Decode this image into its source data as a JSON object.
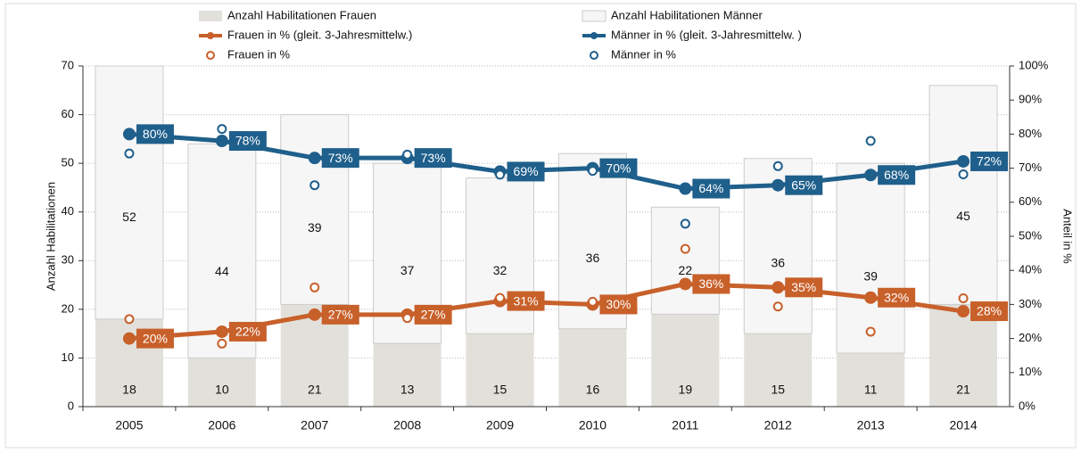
{
  "chart_data": {
    "type": "combo",
    "categories": [
      "2005",
      "2006",
      "2007",
      "2008",
      "2009",
      "2010",
      "2011",
      "2012",
      "2013",
      "2014"
    ],
    "ylabel": "Anzahl Habilitationen",
    "y2label": "Anteil in %",
    "ylim": [
      0,
      70
    ],
    "yticks": [
      0,
      10,
      20,
      30,
      40,
      50,
      60,
      70
    ],
    "y2lim": [
      0,
      100
    ],
    "y2ticks": [
      {
        "value": 0,
        "label": "0%"
      },
      {
        "value": 10,
        "label": "10%"
      },
      {
        "value": 20,
        "label": "20%"
      },
      {
        "value": 30,
        "label": "30%"
      },
      {
        "value": 40,
        "label": "40%"
      },
      {
        "value": 50,
        "label": "50%"
      },
      {
        "value": 60,
        "label": "60%"
      },
      {
        "value": 70,
        "label": "70%"
      },
      {
        "value": 80,
        "label": "80%"
      },
      {
        "value": 90,
        "label": "90%"
      },
      {
        "value": 100,
        "label": "100%"
      }
    ],
    "grid": true,
    "series": [
      {
        "name": "Anzahl Habilitationen Frauen",
        "kind": "bar",
        "color": "#e2e0da",
        "values": [
          18,
          10,
          21,
          13,
          15,
          16,
          19,
          15,
          11,
          21
        ]
      },
      {
        "name": "Anzahl Habilitationen Männer",
        "kind": "bar",
        "color": "#f6f6f6",
        "values": [
          52,
          44,
          39,
          37,
          32,
          36,
          22,
          36,
          39,
          45
        ]
      },
      {
        "name": "Frauen in % (gleit. 3-Jahresmittelw.)",
        "kind": "line",
        "axis": "y2",
        "color": "#c8602a",
        "values": [
          20,
          22,
          27,
          27,
          31,
          30,
          36,
          35,
          32,
          28
        ],
        "value_labels": [
          "20%",
          "22%",
          "27%",
          "27%",
          "31%",
          "30%",
          "36%",
          "35%",
          "32%",
          "28%"
        ]
      },
      {
        "name": "Männer in % (gleit. 3-Jahresmittelw. )",
        "kind": "line",
        "axis": "y2",
        "color": "#1f5f8b",
        "values": [
          80,
          78,
          73,
          73,
          69,
          70,
          64,
          65,
          68,
          72
        ],
        "value_labels": [
          "80%",
          "78%",
          "73%",
          "73%",
          "69%",
          "70%",
          "64%",
          "65%",
          "68%",
          "72%"
        ]
      },
      {
        "name": "Frauen in %",
        "kind": "scatter",
        "axis": "y2",
        "color": "#c8602a",
        "values": [
          25.7,
          18.5,
          35,
          26,
          31.9,
          30.8,
          46.3,
          29.4,
          22,
          31.8
        ]
      },
      {
        "name": "Männer in %",
        "kind": "scatter",
        "axis": "y2",
        "color": "#1f5f8b",
        "values": [
          74.3,
          81.5,
          65,
          74,
          68.1,
          69.2,
          53.7,
          70.6,
          78,
          68.2
        ]
      }
    ]
  }
}
